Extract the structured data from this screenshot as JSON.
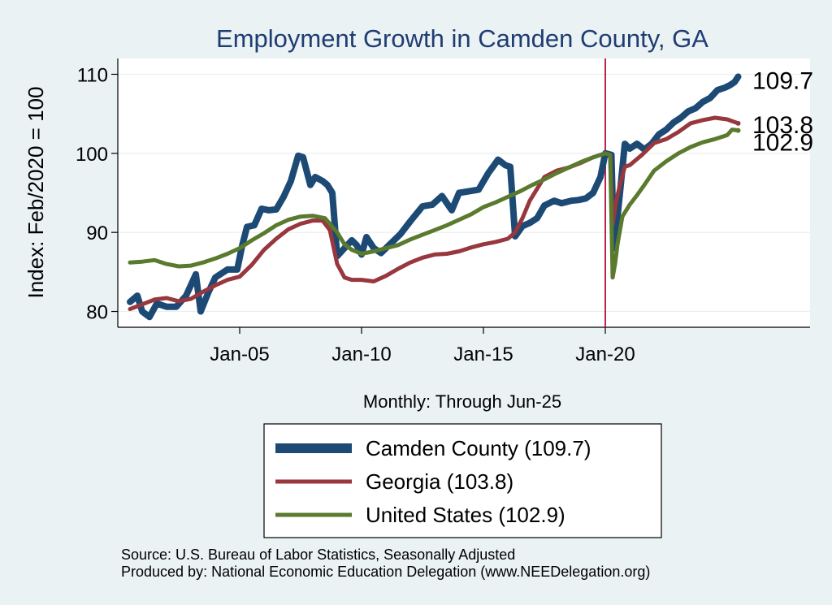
{
  "chart_data": {
    "type": "line",
    "title": "Employment Growth in Camden  County, GA",
    "ylabel": "Index: Feb/2020 = 100",
    "xlabel": "Monthly: Through Jun-25",
    "ylim": [
      78,
      112
    ],
    "yticks": [
      80,
      90,
      100,
      110
    ],
    "xticks": [
      {
        "label": "Jan-05",
        "t": 2005.0
      },
      {
        "label": "Jan-10",
        "t": 2010.0
      },
      {
        "label": "Jan-15",
        "t": 2015.0
      },
      {
        "label": "Jan-20",
        "t": 2020.0
      }
    ],
    "xlim": [
      2000.0,
      2028.4
    ],
    "vline": 2020.0,
    "grid": "horizontal",
    "series": [
      {
        "name": "Camden  County (109.7)",
        "color": "#1c4a75",
        "end_label": "109.7",
        "points": [
          [
            2000.5,
            81.2
          ],
          [
            2000.8,
            82
          ],
          [
            2001.0,
            80
          ],
          [
            2001.3,
            79.3
          ],
          [
            2001.6,
            81
          ],
          [
            2002.0,
            80.6
          ],
          [
            2002.4,
            80.6
          ],
          [
            2002.8,
            82
          ],
          [
            2003.2,
            84.7
          ],
          [
            2003.4,
            80
          ],
          [
            2003.7,
            82.3
          ],
          [
            2004.0,
            84.3
          ],
          [
            2004.5,
            85.3
          ],
          [
            2004.9,
            85.3
          ],
          [
            2005.1,
            88.3
          ],
          [
            2005.3,
            90.7
          ],
          [
            2005.6,
            90.9
          ],
          [
            2005.9,
            93
          ],
          [
            2006.2,
            92.8
          ],
          [
            2006.5,
            92.9
          ],
          [
            2006.8,
            94.5
          ],
          [
            2007.1,
            96.5
          ],
          [
            2007.4,
            99.7
          ],
          [
            2007.6,
            99.5
          ],
          [
            2007.9,
            96
          ],
          [
            2008.1,
            97
          ],
          [
            2008.4,
            96.5
          ],
          [
            2008.6,
            96
          ],
          [
            2008.8,
            95
          ],
          [
            2009.0,
            87
          ],
          [
            2009.3,
            88
          ],
          [
            2009.6,
            89
          ],
          [
            2009.8,
            88.4
          ],
          [
            2010.0,
            87.2
          ],
          [
            2010.2,
            89.4
          ],
          [
            2010.5,
            88
          ],
          [
            2010.8,
            87.4
          ],
          [
            2011.2,
            88.6
          ],
          [
            2011.6,
            89.8
          ],
          [
            2012.0,
            91.4
          ],
          [
            2012.5,
            93.3
          ],
          [
            2012.9,
            93.5
          ],
          [
            2013.3,
            94.6
          ],
          [
            2013.7,
            92.8
          ],
          [
            2014.0,
            95
          ],
          [
            2014.4,
            95.2
          ],
          [
            2014.8,
            95.4
          ],
          [
            2015.2,
            97.5
          ],
          [
            2015.6,
            99.2
          ],
          [
            2015.9,
            98.5
          ],
          [
            2016.1,
            98.3
          ],
          [
            2016.3,
            89.5
          ],
          [
            2016.6,
            90.8
          ],
          [
            2016.9,
            91.2
          ],
          [
            2017.2,
            91.8
          ],
          [
            2017.5,
            93.4
          ],
          [
            2017.9,
            94
          ],
          [
            2018.2,
            93.7
          ],
          [
            2018.6,
            94
          ],
          [
            2018.9,
            94.1
          ],
          [
            2019.2,
            94.3
          ],
          [
            2019.5,
            95
          ],
          [
            2019.8,
            97
          ],
          [
            2020.0,
            100
          ],
          [
            2020.25,
            99.8
          ],
          [
            2020.35,
            88
          ],
          [
            2020.5,
            92
          ],
          [
            2020.65,
            96.5
          ],
          [
            2020.8,
            101.2
          ],
          [
            2021.0,
            100.6
          ],
          [
            2021.3,
            101.2
          ],
          [
            2021.6,
            100.5
          ],
          [
            2021.9,
            101.2
          ],
          [
            2022.2,
            102.4
          ],
          [
            2022.5,
            103
          ],
          [
            2022.8,
            103.9
          ],
          [
            2023.1,
            104.5
          ],
          [
            2023.4,
            105.3
          ],
          [
            2023.7,
            105.7
          ],
          [
            2024.0,
            106.5
          ],
          [
            2024.3,
            107
          ],
          [
            2024.6,
            108
          ],
          [
            2024.9,
            108.3
          ],
          [
            2025.1,
            108.6
          ],
          [
            2025.3,
            109
          ],
          [
            2025.45,
            109.7
          ]
        ]
      },
      {
        "name": "Georgia (103.8)",
        "color": "#98373d",
        "end_label": "103.8",
        "points": [
          [
            2000.5,
            80.3
          ],
          [
            2001.0,
            80.9
          ],
          [
            2001.5,
            81.5
          ],
          [
            2002.0,
            81.7
          ],
          [
            2002.5,
            81.3
          ],
          [
            2003.0,
            81.6
          ],
          [
            2003.5,
            82.5
          ],
          [
            2004.0,
            83.3
          ],
          [
            2004.5,
            84
          ],
          [
            2005.0,
            84.4
          ],
          [
            2005.5,
            85.9
          ],
          [
            2006.0,
            87.8
          ],
          [
            2006.5,
            89.2
          ],
          [
            2007.0,
            90.4
          ],
          [
            2007.5,
            91.1
          ],
          [
            2008.0,
            91.5
          ],
          [
            2008.4,
            91.5
          ],
          [
            2008.7,
            90.3
          ],
          [
            2009.0,
            86
          ],
          [
            2009.3,
            84.3
          ],
          [
            2009.6,
            84
          ],
          [
            2010.0,
            84
          ],
          [
            2010.5,
            83.8
          ],
          [
            2011.0,
            84.5
          ],
          [
            2011.5,
            85.4
          ],
          [
            2012.0,
            86.2
          ],
          [
            2012.5,
            86.8
          ],
          [
            2013.0,
            87.2
          ],
          [
            2013.5,
            87.3
          ],
          [
            2014.0,
            87.6
          ],
          [
            2014.5,
            88.1
          ],
          [
            2015.0,
            88.5
          ],
          [
            2015.5,
            88.8
          ],
          [
            2016.0,
            89.2
          ],
          [
            2016.3,
            90
          ],
          [
            2016.6,
            91.8
          ],
          [
            2016.9,
            94
          ],
          [
            2017.2,
            95.5
          ],
          [
            2017.5,
            97
          ],
          [
            2018.0,
            97.8
          ],
          [
            2018.5,
            98.2
          ],
          [
            2019.0,
            98.8
          ],
          [
            2019.5,
            99.5
          ],
          [
            2020.0,
            100
          ],
          [
            2020.2,
            99.8
          ],
          [
            2020.3,
            91
          ],
          [
            2020.45,
            94
          ],
          [
            2020.6,
            96
          ],
          [
            2020.8,
            98.3
          ],
          [
            2021.0,
            98.5
          ],
          [
            2021.5,
            99.8
          ],
          [
            2022.0,
            101.3
          ],
          [
            2022.5,
            101.8
          ],
          [
            2023.0,
            102.7
          ],
          [
            2023.5,
            103.8
          ],
          [
            2024.0,
            104.2
          ],
          [
            2024.5,
            104.5
          ],
          [
            2025.0,
            104.3
          ],
          [
            2025.45,
            103.8
          ]
        ]
      },
      {
        "name": "United States (102.9)",
        "color": "#5a7a2e",
        "end_label": "102.9",
        "points": [
          [
            2000.5,
            86.2
          ],
          [
            2001.0,
            86.3
          ],
          [
            2001.5,
            86.5
          ],
          [
            2002.0,
            86
          ],
          [
            2002.5,
            85.7
          ],
          [
            2003.0,
            85.8
          ],
          [
            2003.5,
            86.2
          ],
          [
            2004.0,
            86.7
          ],
          [
            2004.5,
            87.3
          ],
          [
            2005.0,
            88
          ],
          [
            2005.5,
            89
          ],
          [
            2006.0,
            89.9
          ],
          [
            2006.5,
            90.9
          ],
          [
            2007.0,
            91.6
          ],
          [
            2007.5,
            92
          ],
          [
            2008.0,
            92.1
          ],
          [
            2008.5,
            91.8
          ],
          [
            2009.0,
            90
          ],
          [
            2009.3,
            88.5
          ],
          [
            2009.6,
            87.8
          ],
          [
            2010.0,
            87.3
          ],
          [
            2010.5,
            87.6
          ],
          [
            2011.0,
            88
          ],
          [
            2011.5,
            88.4
          ],
          [
            2012.0,
            89.1
          ],
          [
            2012.5,
            89.7
          ],
          [
            2013.0,
            90.3
          ],
          [
            2013.5,
            90.9
          ],
          [
            2014.0,
            91.6
          ],
          [
            2014.5,
            92.3
          ],
          [
            2015.0,
            93.2
          ],
          [
            2015.5,
            93.8
          ],
          [
            2016.0,
            94.5
          ],
          [
            2016.5,
            95.2
          ],
          [
            2017.0,
            96
          ],
          [
            2017.5,
            96.7
          ],
          [
            2018.0,
            97.5
          ],
          [
            2018.5,
            98.2
          ],
          [
            2019.0,
            98.9
          ],
          [
            2019.5,
            99.5
          ],
          [
            2020.0,
            100
          ],
          [
            2020.2,
            99.8
          ],
          [
            2020.3,
            84.3
          ],
          [
            2020.4,
            86
          ],
          [
            2020.5,
            88.5
          ],
          [
            2020.7,
            92
          ],
          [
            2021.0,
            93.5
          ],
          [
            2021.3,
            94.7
          ],
          [
            2021.6,
            96
          ],
          [
            2022.0,
            97.8
          ],
          [
            2022.5,
            99
          ],
          [
            2023.0,
            100
          ],
          [
            2023.5,
            100.8
          ],
          [
            2024.0,
            101.4
          ],
          [
            2024.5,
            101.8
          ],
          [
            2025.0,
            102.3
          ],
          [
            2025.2,
            103
          ],
          [
            2025.45,
            102.9
          ]
        ]
      }
    ]
  },
  "footer": {
    "source": "Source: U.S. Bureau of Labor Statistics, Seasonally Adjusted",
    "produced_by": "Produced by: National Economic Education Delegation (www.NEEDelegation.org)"
  }
}
